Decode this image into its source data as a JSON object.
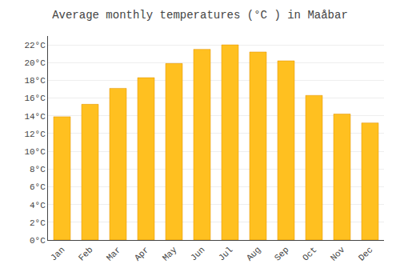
{
  "chart_data": {
    "type": "bar",
    "title": "Average monthly temperatures (°C ) in Maå‎bar",
    "categories": [
      "Jan",
      "Feb",
      "Mar",
      "Apr",
      "May",
      "Jun",
      "Jul",
      "Aug",
      "Sep",
      "Oct",
      "Nov",
      "Dec"
    ],
    "values": [
      13.9,
      15.3,
      17.1,
      18.3,
      19.9,
      21.5,
      22.0,
      21.2,
      20.2,
      16.3,
      14.2,
      13.2
    ],
    "color": "#FFC020",
    "ylim": [
      0,
      23
    ],
    "yticks": [
      {
        "value": 0,
        "label": "0°C"
      },
      {
        "value": 2,
        "label": "2°C"
      },
      {
        "value": 4,
        "label": "4°C"
      },
      {
        "value": 6,
        "label": "6°C"
      },
      {
        "value": 8,
        "label": "8°C"
      },
      {
        "value": 10,
        "label": "10°C"
      },
      {
        "value": 12,
        "label": "12°C"
      },
      {
        "value": 14,
        "label": "14°C"
      },
      {
        "value": 16,
        "label": "16°C"
      },
      {
        "value": 18,
        "label": "18°C"
      },
      {
        "value": 20,
        "label": "20°C"
      },
      {
        "value": 22,
        "label": "22°C"
      }
    ],
    "grid": true
  }
}
